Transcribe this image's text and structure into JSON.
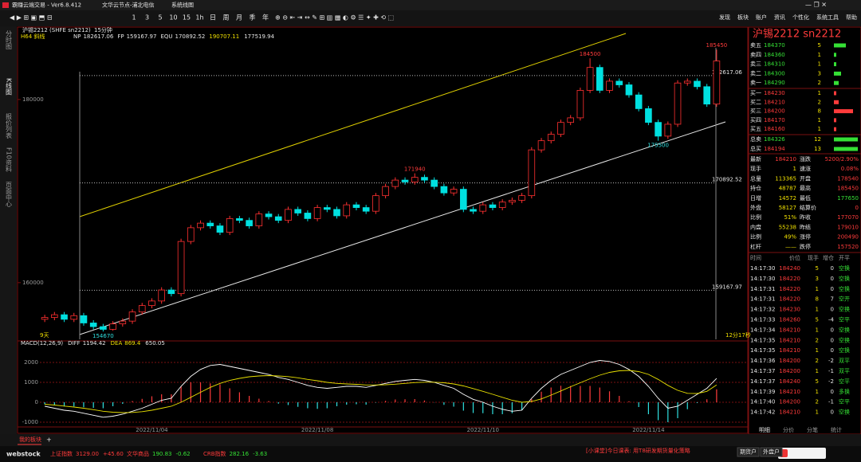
{
  "window": {
    "title": "霸赚云端交易 - Ver6.8.412",
    "node": "文华云节点-浦北电信",
    "view": "系统线图",
    "periods": [
      "1",
      "3",
      "5",
      "10",
      "15",
      "1h",
      "日",
      "周",
      "月",
      "季",
      "年"
    ],
    "menus": [
      "发现",
      "板块",
      "账户",
      "资讯",
      "个性化",
      "系统工具",
      "帮助"
    ]
  },
  "left_tabs": [
    "分时图",
    "K线图",
    "报价列表",
    "F10资料",
    "页面中心"
  ],
  "chart_data": [
    {
      "type": "candlestick",
      "title": "沪锡2212 (SHFE sn2212)",
      "period": "15分钟",
      "indicator": "H64 斜线",
      "levels": [
        {
          "name": "NP",
          "value": 182617.06
        },
        {
          "name": "FP",
          "value": 159167.97
        },
        {
          "name": "EQU",
          "value": 170892.52
        }
      ],
      "extra_values": [
        190707.11,
        177519.94
      ],
      "corner_label": "9天",
      "countdown": "12分17秒",
      "ylim": [
        153900,
        186950
      ],
      "yticks": [
        160000,
        180000
      ],
      "up_color": "#ff3030",
      "down_color": "#00e0e0",
      "categories": [
        null,
        null,
        null,
        null,
        null,
        null,
        null,
        null,
        null,
        null,
        null,
        "2022/11/04",
        null,
        null,
        null,
        null,
        null,
        null,
        null,
        null,
        null,
        null,
        null,
        null,
        null,
        null,
        null,
        null,
        "2022/11/08",
        null,
        null,
        null,
        null,
        null,
        null,
        null,
        null,
        null,
        null,
        null,
        null,
        null,
        null,
        null,
        null,
        "2022/11/10",
        null,
        null,
        null,
        null,
        null,
        null,
        null,
        null,
        null,
        null,
        null,
        null,
        null,
        null,
        null,
        null,
        "2022/11/14",
        null,
        null,
        null,
        null,
        null,
        null,
        null
      ],
      "open": [
        156000,
        156200,
        156500,
        156000,
        156400,
        155600,
        155200,
        154900,
        155500,
        155800,
        156800,
        157500,
        158000,
        159200,
        158800,
        164500,
        166000,
        166500,
        166200,
        165500,
        167000,
        166800,
        166200,
        167500,
        167200,
        166800,
        168000,
        167600,
        167000,
        168200,
        168000,
        167300,
        168500,
        168200,
        167800,
        169500,
        170500,
        171200,
        171000,
        171500,
        171200,
        170500,
        169800,
        170200,
        168000,
        167800,
        168500,
        168200,
        168800,
        169000,
        169500,
        174500,
        175500,
        176200,
        177500,
        178000,
        181000,
        183500,
        181000,
        182000,
        181600,
        180500,
        179000,
        177500,
        176000,
        177300,
        181800,
        182000,
        181400,
        179500
      ],
      "high": [
        156500,
        156800,
        156800,
        156700,
        156700,
        155900,
        155500,
        155800,
        156100,
        157100,
        157800,
        158300,
        159500,
        159500,
        164800,
        166300,
        166800,
        166800,
        166500,
        167300,
        167300,
        167100,
        167800,
        167800,
        167500,
        168300,
        168300,
        167900,
        168500,
        168500,
        168300,
        168800,
        168800,
        168500,
        169800,
        170800,
        171500,
        171500,
        171940,
        171800,
        171500,
        170800,
        170500,
        170500,
        168300,
        168800,
        168800,
        169100,
        169300,
        169800,
        174800,
        175800,
        176500,
        177800,
        178300,
        181300,
        184500,
        183800,
        182300,
        182300,
        181900,
        180800,
        179300,
        177800,
        177600,
        182100,
        182300,
        182300,
        181700,
        185450
      ],
      "low": [
        155700,
        155900,
        155700,
        155700,
        155300,
        154900,
        154670,
        154750,
        155200,
        155500,
        156500,
        157200,
        157700,
        158500,
        158500,
        164200,
        165700,
        165900,
        165200,
        165200,
        166500,
        165900,
        165900,
        166900,
        166500,
        166500,
        167300,
        166700,
        166700,
        167700,
        167000,
        167000,
        167900,
        167500,
        167500,
        169200,
        170200,
        170700,
        170700,
        170900,
        170200,
        169500,
        169500,
        167700,
        167500,
        167500,
        167900,
        167900,
        168500,
        168700,
        169200,
        174200,
        175200,
        175900,
        177200,
        177700,
        180700,
        180700,
        180700,
        181300,
        180200,
        178700,
        177200,
        175500,
        175700,
        177000,
        181500,
        181100,
        179200,
        179200
      ],
      "close": [
        156200,
        156500,
        156000,
        156400,
        155600,
        155200,
        154900,
        155500,
        155800,
        156800,
        157500,
        158000,
        159200,
        158800,
        164500,
        166000,
        166500,
        166200,
        165500,
        167000,
        166800,
        166200,
        167500,
        167200,
        166800,
        168000,
        167600,
        167000,
        168200,
        168000,
        167300,
        168500,
        168200,
        167800,
        169500,
        170500,
        171200,
        171000,
        171500,
        171200,
        170500,
        169800,
        170200,
        168000,
        167800,
        168500,
        168200,
        168800,
        169000,
        169500,
        174500,
        175500,
        176200,
        177500,
        178000,
        181000,
        183500,
        181000,
        182000,
        181600,
        180500,
        179000,
        177500,
        176000,
        177300,
        181800,
        182000,
        181400,
        179500,
        184210
      ]
    },
    {
      "type": "macd",
      "title": "MACD(12,26,9)",
      "diff_name": "DIFF",
      "dea_name": "DEA",
      "ylim": [
        -1200,
        2600
      ],
      "yticks": [
        2000,
        1000,
        0,
        -1000
      ],
      "diff_color": "#ffffff",
      "dea_color": "#e8e000",
      "diff": [
        -200,
        -300,
        -400,
        -450,
        -550,
        -650,
        -750,
        -700,
        -600,
        -450,
        -300,
        -100,
        100,
        200,
        800,
        1300,
        1650,
        1850,
        1900,
        1800,
        1700,
        1600,
        1500,
        1400,
        1250,
        1150,
        1000,
        850,
        750,
        700,
        750,
        800,
        800,
        750,
        850,
        950,
        1050,
        1100,
        1150,
        1100,
        1000,
        850,
        700,
        400,
        150,
        0,
        -200,
        -350,
        -450,
        -400,
        200,
        700,
        1100,
        1400,
        1600,
        1800,
        2000,
        2100,
        2050,
        1900,
        1650,
        1300,
        800,
        200,
        -300,
        -200,
        100,
        400,
        700,
        1194.42
      ],
      "dea": [
        -100,
        -140,
        -190,
        -240,
        -300,
        -370,
        -450,
        -500,
        -520,
        -510,
        -470,
        -400,
        -300,
        -200,
        0,
        250,
        500,
        750,
        950,
        1100,
        1200,
        1280,
        1320,
        1340,
        1320,
        1290,
        1230,
        1150,
        1080,
        1000,
        950,
        920,
        900,
        870,
        870,
        880,
        910,
        950,
        990,
        1010,
        1010,
        980,
        920,
        820,
        690,
        550,
        400,
        250,
        100,
        0,
        40,
        170,
        360,
        570,
        780,
        980,
        1180,
        1360,
        1500,
        1580,
        1600,
        1540,
        1400,
        1150,
        850,
        600,
        450,
        440,
        550,
        869.4
      ],
      "macd": [
        -100,
        -160,
        -210,
        -210,
        -250,
        -280,
        -300,
        -200,
        -80,
        60,
        170,
        300,
        400,
        400,
        800,
        1000,
        1000,
        950,
        900,
        700,
        500,
        320,
        180,
        60,
        -70,
        -140,
        -230,
        -300,
        -330,
        -300,
        -200,
        -120,
        -100,
        -120,
        -20,
        70,
        140,
        150,
        160,
        90,
        -10,
        -130,
        -220,
        -420,
        -540,
        -550,
        -600,
        -600,
        -550,
        -400,
        160,
        530,
        740,
        830,
        820,
        820,
        820,
        740,
        550,
        320,
        50,
        -240,
        -600,
        -900,
        -1000,
        -800,
        -350,
        -40,
        150,
        650.05
      ]
    }
  ],
  "quote": {
    "title": "沪锡2212  sn2212",
    "asks": [
      {
        "name": "卖五",
        "price": 184370,
        "qty": 5
      },
      {
        "name": "卖四",
        "price": 184360,
        "qty": 1
      },
      {
        "name": "卖三",
        "price": 184310,
        "qty": 1
      },
      {
        "name": "卖二",
        "price": 184300,
        "qty": 3
      },
      {
        "name": "卖一",
        "price": 184290,
        "qty": 2
      }
    ],
    "bids": [
      {
        "name": "买一",
        "price": 184230,
        "qty": 1
      },
      {
        "name": "买二",
        "price": 184210,
        "qty": 2
      },
      {
        "name": "买三",
        "price": 184200,
        "qty": 8
      },
      {
        "name": "买四",
        "price": 184170,
        "qty": 1
      },
      {
        "name": "买五",
        "price": 184160,
        "qty": 1
      }
    ],
    "totals": [
      {
        "name": "总卖",
        "price": 184326,
        "qty": 12
      },
      {
        "name": "总买",
        "price": 184194,
        "qty": 13
      }
    ],
    "stats": [
      [
        "最新",
        "184210",
        "涨跌",
        "5200/2.90%"
      ],
      [
        "现手",
        "1",
        "速涨",
        "0.08%"
      ],
      [
        "总量",
        "113365",
        "开盘",
        "178540"
      ],
      [
        "持仓",
        "48787",
        "最高",
        "185450"
      ],
      [
        "日增",
        "14572",
        "最低",
        "177650"
      ],
      [
        "外盘",
        "58127",
        "结算价",
        "0"
      ],
      [
        "比例",
        "51%",
        "昨收",
        "177070"
      ],
      [
        "内盘",
        "55238",
        "昨结",
        "179010"
      ],
      [
        "比例",
        "49%",
        "涨停",
        "200490"
      ],
      [
        "杠杆",
        "——",
        "跌停",
        "157520"
      ]
    ],
    "trade_header": [
      "时间",
      "价位",
      "现手",
      "增仓",
      "开平"
    ],
    "trades": [
      [
        "14:17:30",
        "184240",
        "5",
        "0",
        "空换"
      ],
      [
        "14:17:30",
        "184220",
        "3",
        "0",
        "空换"
      ],
      [
        "14:17:31",
        "184220",
        "1",
        "0",
        "空换"
      ],
      [
        "14:17:31",
        "184220",
        "8",
        "7",
        "空开"
      ],
      [
        "14:17:32",
        "184230",
        "1",
        "0",
        "空换"
      ],
      [
        "14:17:33",
        "184260",
        "5",
        "-4",
        "空平"
      ],
      [
        "14:17:34",
        "184210",
        "1",
        "0",
        "空换"
      ],
      [
        "14:17:35",
        "184210",
        "2",
        "0",
        "空换"
      ],
      [
        "14:17:35",
        "184210",
        "1",
        "0",
        "空换"
      ],
      [
        "14:17:36",
        "184200",
        "2",
        "-2",
        "双平"
      ],
      [
        "14:17:37",
        "184200",
        "1",
        "-1",
        "双平"
      ],
      [
        "14:17:37",
        "184240",
        "5",
        "-2",
        "空平"
      ],
      [
        "14:17:39",
        "184210",
        "1",
        "0",
        "多换"
      ],
      [
        "14:17:40",
        "184200",
        "2",
        "-1",
        "空平"
      ],
      [
        "14:17:42",
        "184210",
        "1",
        "0",
        "空换"
      ]
    ],
    "tabs": [
      "明细",
      "分价",
      "分笔",
      "统计"
    ]
  },
  "footer": {
    "board_tab": "我的板块",
    "add_tab": "+",
    "logo": "webstock",
    "indices": [
      [
        "上证指数",
        "3129.00",
        "+45.60"
      ],
      [
        "文华商品",
        "190.83",
        "-0.62"
      ],
      [
        "CRB指数",
        "282.16",
        "-3.63"
      ]
    ],
    "news": "[小课堂]今日课表: 用T8研发期货量化策略",
    "accounts": [
      "期货户",
      "外盘户"
    ]
  }
}
